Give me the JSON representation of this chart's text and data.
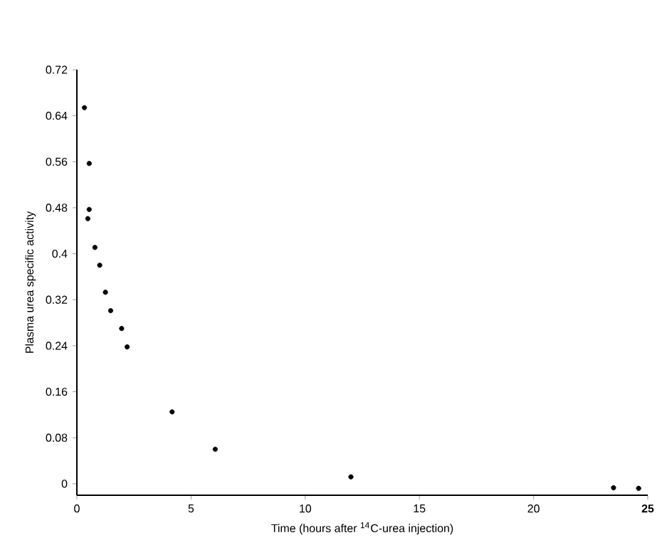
{
  "chart_data": {
    "type": "scatter",
    "xlabel": "Time (hours after $^{14}$C-urea injection)",
    "ylabel": "Plasma urea specific activity",
    "x": [
      0.33,
      0.54,
      0.54,
      0.48,
      0.79,
      1.0,
      1.25,
      1.48,
      1.96,
      2.2,
      4.17,
      6.06,
      12.0,
      23.5,
      24.6
    ],
    "values": [
      0.654,
      0.557,
      0.477,
      0.461,
      0.411,
      0.38,
      0.333,
      0.301,
      0.27,
      0.238,
      0.125,
      0.06,
      0.012,
      -0.007,
      -0.008
    ],
    "color": "#000000",
    "marker": "circle",
    "xlim": [
      0,
      25
    ],
    "ylim": [
      -0.02,
      0.72
    ],
    "xticks": [
      0,
      5,
      10,
      15,
      20,
      {
        "value": 25,
        "label": "**25**"
      }
    ],
    "yticks": [
      0,
      0.08,
      0.16,
      0.24,
      0.32,
      0.4,
      0.48,
      0.56,
      0.64,
      0.72
    ],
    "grid": false
  }
}
